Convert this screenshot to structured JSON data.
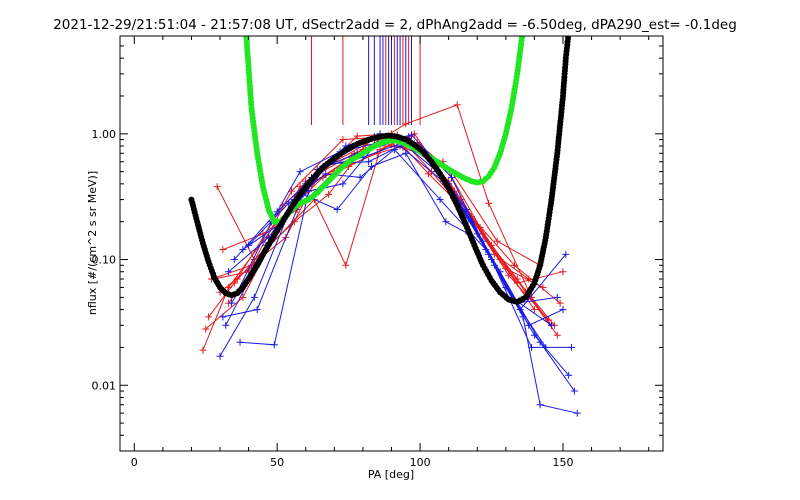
{
  "chart_data": {
    "type": "scatter",
    "title": "2021-12-29/21:51:04 - 21:57:08 UT, dSectr2add = 2, dPhAng2add = -6.50deg, dPA290_est=  -0.1deg",
    "xlabel": "PA [deg]",
    "ylabel": "nflux [#/(cm^2 s sr MeV)]",
    "xlim": [
      -5,
      185
    ],
    "ylim": [
      0.003,
      6.0
    ],
    "yscale": "log",
    "grid": false,
    "x_ticks": [
      0,
      50,
      100,
      150
    ],
    "x_tick_labels": [
      "0",
      "50",
      "100",
      "150"
    ],
    "y_ticks": [
      0.01,
      0.1,
      1.0
    ],
    "y_tick_labels": [
      "0.01",
      "0.10",
      "1.00"
    ],
    "colors": {
      "red_series": "#e31a1c",
      "blue_series": "#1a1ae0",
      "green_fit": "#22e622",
      "black_fit": "#000000",
      "axes": "#000000"
    },
    "vertical_markers": {
      "red": [
        62,
        73,
        88,
        91,
        94,
        96,
        100
      ],
      "blue": [
        82,
        84,
        86,
        87,
        89,
        90,
        92,
        93,
        95,
        97
      ]
    },
    "series": [
      {
        "color": "red",
        "lines": [
          [
            [
              24,
              0.019
            ],
            [
              33,
              0.06
            ],
            [
              50,
              0.2
            ],
            [
              66,
              0.45
            ],
            [
              80,
              0.75
            ],
            [
              92,
              0.93
            ],
            [
              106,
              0.55
            ],
            [
              122,
              0.16
            ],
            [
              134,
              0.07
            ],
            [
              146,
              0.03
            ]
          ],
          [
            [
              26,
              0.035
            ],
            [
              36,
              0.07
            ],
            [
              52,
              0.27
            ],
            [
              70,
              0.6
            ],
            [
              84,
              0.9
            ],
            [
              96,
              0.95
            ],
            [
              110,
              0.42
            ],
            [
              125,
              0.13
            ],
            [
              137,
              0.055
            ],
            [
              148,
              0.025
            ]
          ],
          [
            [
              28,
              0.07
            ],
            [
              40,
              0.08
            ],
            [
              55,
              0.35
            ],
            [
              73,
              0.9
            ],
            [
              88,
              0.95
            ],
            [
              100,
              0.72
            ],
            [
              114,
              0.3
            ],
            [
              128,
              0.1
            ],
            [
              140,
              0.04
            ]
          ],
          [
            [
              30,
              0.055
            ],
            [
              44,
              0.1
            ],
            [
              60,
              0.42
            ],
            [
              77,
              0.7
            ],
            [
              92,
              0.98
            ],
            [
              104,
              0.5
            ],
            [
              119,
              0.2
            ],
            [
              131,
              0.075
            ],
            [
              145,
              0.033
            ]
          ],
          [
            [
              25,
              0.028
            ],
            [
              38,
              0.05
            ],
            [
              58,
              0.38
            ],
            [
              75,
              0.55
            ],
            [
              90,
              0.82
            ],
            [
              102,
              0.68
            ],
            [
              116,
              0.25
            ],
            [
              130,
              0.085
            ],
            [
              143,
              0.06
            ]
          ],
          [
            [
              33,
              0.045
            ],
            [
              46,
              0.12
            ],
            [
              63,
              0.3
            ],
            [
              74,
              0.09
            ],
            [
              86,
              0.75
            ],
            [
              98,
              1.0
            ],
            [
              112,
              0.35
            ],
            [
              126,
              0.11
            ],
            [
              138,
              0.07
            ]
          ],
          [
            [
              29,
              0.38
            ],
            [
              42,
              0.1
            ],
            [
              56,
              0.2
            ],
            [
              68,
              0.33
            ],
            [
              81,
              0.82
            ],
            [
              94,
              0.78
            ],
            [
              108,
              0.6
            ],
            [
              121,
              0.18
            ],
            [
              134,
              0.065
            ],
            [
              150,
              0.08
            ]
          ],
          [
            [
              27,
              0.07
            ],
            [
              41,
              0.09
            ],
            [
              53,
              0.15
            ],
            [
              65,
              0.5
            ],
            [
              78,
              0.96
            ],
            [
              90,
              1.0
            ],
            [
              103,
              0.48
            ],
            [
              118,
              0.22
            ],
            [
              133,
              0.09
            ],
            [
              149,
              0.045
            ]
          ],
          [
            [
              35,
              0.065
            ],
            [
              48,
              0.14
            ],
            [
              62,
              0.4
            ],
            [
              76,
              0.65
            ],
            [
              95,
              1.2
            ],
            [
              113,
              1.7
            ],
            [
              124,
              0.28
            ],
            [
              139,
              0.05
            ],
            [
              147,
              0.03
            ]
          ],
          [
            [
              31,
              0.12
            ],
            [
              45,
              0.16
            ],
            [
              57,
              0.25
            ],
            [
              70,
              0.5
            ],
            [
              85,
              0.7
            ],
            [
              99,
              0.85
            ],
            [
              111,
              0.5
            ],
            [
              127,
              0.14
            ],
            [
              142,
              0.09
            ]
          ]
        ]
      },
      {
        "color": "blue",
        "lines": [
          [
            [
              30,
              0.017
            ],
            [
              42,
              0.05
            ],
            [
              56,
              0.3
            ],
            [
              70,
              0.62
            ],
            [
              84,
              0.95
            ],
            [
              96,
              0.92
            ],
            [
              110,
              0.4
            ],
            [
              124,
              0.11
            ],
            [
              136,
              0.035
            ],
            [
              142,
              0.007
            ],
            [
              155,
              0.006
            ]
          ],
          [
            [
              32,
              0.03
            ],
            [
              44,
              0.1
            ],
            [
              60,
              0.4
            ],
            [
              74,
              0.8
            ],
            [
              86,
              1.0
            ],
            [
              98,
              0.83
            ],
            [
              112,
              0.33
            ],
            [
              126,
              0.09
            ],
            [
              140,
              0.025
            ],
            [
              152,
              0.012
            ]
          ],
          [
            [
              34,
              0.045
            ],
            [
              46,
              0.13
            ],
            [
              62,
              0.45
            ],
            [
              76,
              0.78
            ],
            [
              88,
              0.95
            ],
            [
              100,
              0.75
            ],
            [
              114,
              0.28
            ],
            [
              128,
              0.08
            ],
            [
              142,
              0.022
            ],
            [
              154,
              0.009
            ]
          ],
          [
            [
              36,
              0.055
            ],
            [
              48,
              0.2
            ],
            [
              58,
              0.5
            ],
            [
              72,
              0.72
            ],
            [
              90,
              0.9
            ],
            [
              102,
              0.7
            ],
            [
              116,
              0.25
            ],
            [
              130,
              0.06
            ],
            [
              144,
              0.02
            ]
          ],
          [
            [
              33,
              0.08
            ],
            [
              47,
              0.15
            ],
            [
              64,
              0.52
            ],
            [
              78,
              0.7
            ],
            [
              92,
              0.88
            ],
            [
              104,
              0.62
            ],
            [
              118,
              0.2
            ],
            [
              132,
              0.05
            ],
            [
              146,
              0.03
            ]
          ],
          [
            [
              35,
              0.1
            ],
            [
              50,
              0.24
            ],
            [
              66,
              0.55
            ],
            [
              80,
              0.65
            ],
            [
              94,
              0.85
            ],
            [
              106,
              0.5
            ],
            [
              120,
              0.16
            ],
            [
              134,
              0.045
            ],
            [
              148,
              0.05
            ]
          ],
          [
            [
              38,
              0.12
            ],
            [
              52,
              0.2
            ],
            [
              68,
              0.58
            ],
            [
              82,
              0.6
            ],
            [
              93,
              0.8
            ],
            [
              108,
              0.42
            ],
            [
              122,
              0.14
            ],
            [
              138,
              0.03
            ],
            [
              150,
              0.04
            ]
          ],
          [
            [
              40,
              0.13
            ],
            [
              54,
              0.28
            ],
            [
              67,
              0.48
            ],
            [
              79,
              0.45
            ],
            [
              91,
              0.75
            ],
            [
              107,
              0.3
            ],
            [
              123,
              0.12
            ],
            [
              135,
              0.04
            ],
            [
              151,
              0.11
            ]
          ],
          [
            [
              31,
              0.035
            ],
            [
              43,
              0.04
            ],
            [
              59,
              0.33
            ],
            [
              71,
              0.25
            ],
            [
              83,
              0.55
            ],
            [
              95,
              0.7
            ],
            [
              109,
              0.2
            ],
            [
              117,
              0.16
            ]
          ],
          [
            [
              37,
              0.022
            ],
            [
              49,
              0.021
            ],
            [
              61,
              0.35
            ],
            [
              73,
              0.4
            ],
            [
              85,
              0.85
            ],
            [
              97,
              0.98
            ],
            [
              111,
              0.45
            ],
            [
              125,
              0.1
            ],
            [
              139,
              0.02
            ],
            [
              153,
              0.02
            ]
          ]
        ]
      }
    ],
    "fits": [
      {
        "color": "green",
        "points": [
          [
            39,
            7.0
          ],
          [
            41,
            1.6
          ],
          [
            43,
            0.7
          ],
          [
            45,
            0.38
          ],
          [
            47,
            0.25
          ],
          [
            49,
            0.2
          ],
          [
            51,
            0.2
          ],
          [
            53,
            0.22
          ],
          [
            55,
            0.25
          ],
          [
            58,
            0.28
          ],
          [
            61,
            0.3
          ],
          [
            64,
            0.34
          ],
          [
            67,
            0.4
          ],
          [
            70,
            0.47
          ],
          [
            73,
            0.55
          ],
          [
            76,
            0.62
          ],
          [
            79,
            0.68
          ],
          [
            82,
            0.75
          ],
          [
            85,
            0.82
          ],
          [
            88,
            0.87
          ],
          [
            91,
            0.89
          ],
          [
            94,
            0.85
          ],
          [
            97,
            0.79
          ],
          [
            100,
            0.72
          ],
          [
            103,
            0.66
          ],
          [
            106,
            0.6
          ],
          [
            109,
            0.54
          ],
          [
            112,
            0.49
          ],
          [
            115,
            0.45
          ],
          [
            118,
            0.42
          ],
          [
            120,
            0.41
          ],
          [
            122,
            0.42
          ],
          [
            124,
            0.46
          ],
          [
            126,
            0.54
          ],
          [
            128,
            0.7
          ],
          [
            130,
            1.0
          ],
          [
            132,
            1.6
          ],
          [
            134,
            3.0
          ],
          [
            135.5,
            5.5
          ],
          [
            136.5,
            8.0
          ]
        ]
      },
      {
        "color": "black",
        "points": [
          [
            20,
            0.3
          ],
          [
            22,
            0.2
          ],
          [
            24,
            0.135
          ],
          [
            26,
            0.096
          ],
          [
            28,
            0.072
          ],
          [
            30,
            0.06
          ],
          [
            32,
            0.054
          ],
          [
            34,
            0.052
          ],
          [
            36,
            0.054
          ],
          [
            38,
            0.06
          ],
          [
            40,
            0.07
          ],
          [
            43,
            0.09
          ],
          [
            46,
            0.12
          ],
          [
            50,
            0.17
          ],
          [
            54,
            0.24
          ],
          [
            58,
            0.33
          ],
          [
            62,
            0.43
          ],
          [
            66,
            0.54
          ],
          [
            70,
            0.64
          ],
          [
            74,
            0.74
          ],
          [
            78,
            0.83
          ],
          [
            82,
            0.9
          ],
          [
            86,
            0.95
          ],
          [
            89,
            0.97
          ],
          [
            92,
            0.95
          ],
          [
            95,
            0.9
          ],
          [
            98,
            0.82
          ],
          [
            101,
            0.72
          ],
          [
            104,
            0.6
          ],
          [
            107,
            0.48
          ],
          [
            110,
            0.37
          ],
          [
            113,
            0.27
          ],
          [
            116,
            0.19
          ],
          [
            119,
            0.13
          ],
          [
            122,
            0.09
          ],
          [
            125,
            0.068
          ],
          [
            128,
            0.055
          ],
          [
            131,
            0.048
          ],
          [
            134,
            0.046
          ],
          [
            137,
            0.05
          ],
          [
            140,
            0.065
          ],
          [
            142,
            0.09
          ],
          [
            144,
            0.15
          ],
          [
            146,
            0.3
          ],
          [
            148,
            0.7
          ],
          [
            150,
            2.0
          ],
          [
            151,
            4.0
          ],
          [
            152,
            6.5
          ]
        ]
      }
    ]
  }
}
